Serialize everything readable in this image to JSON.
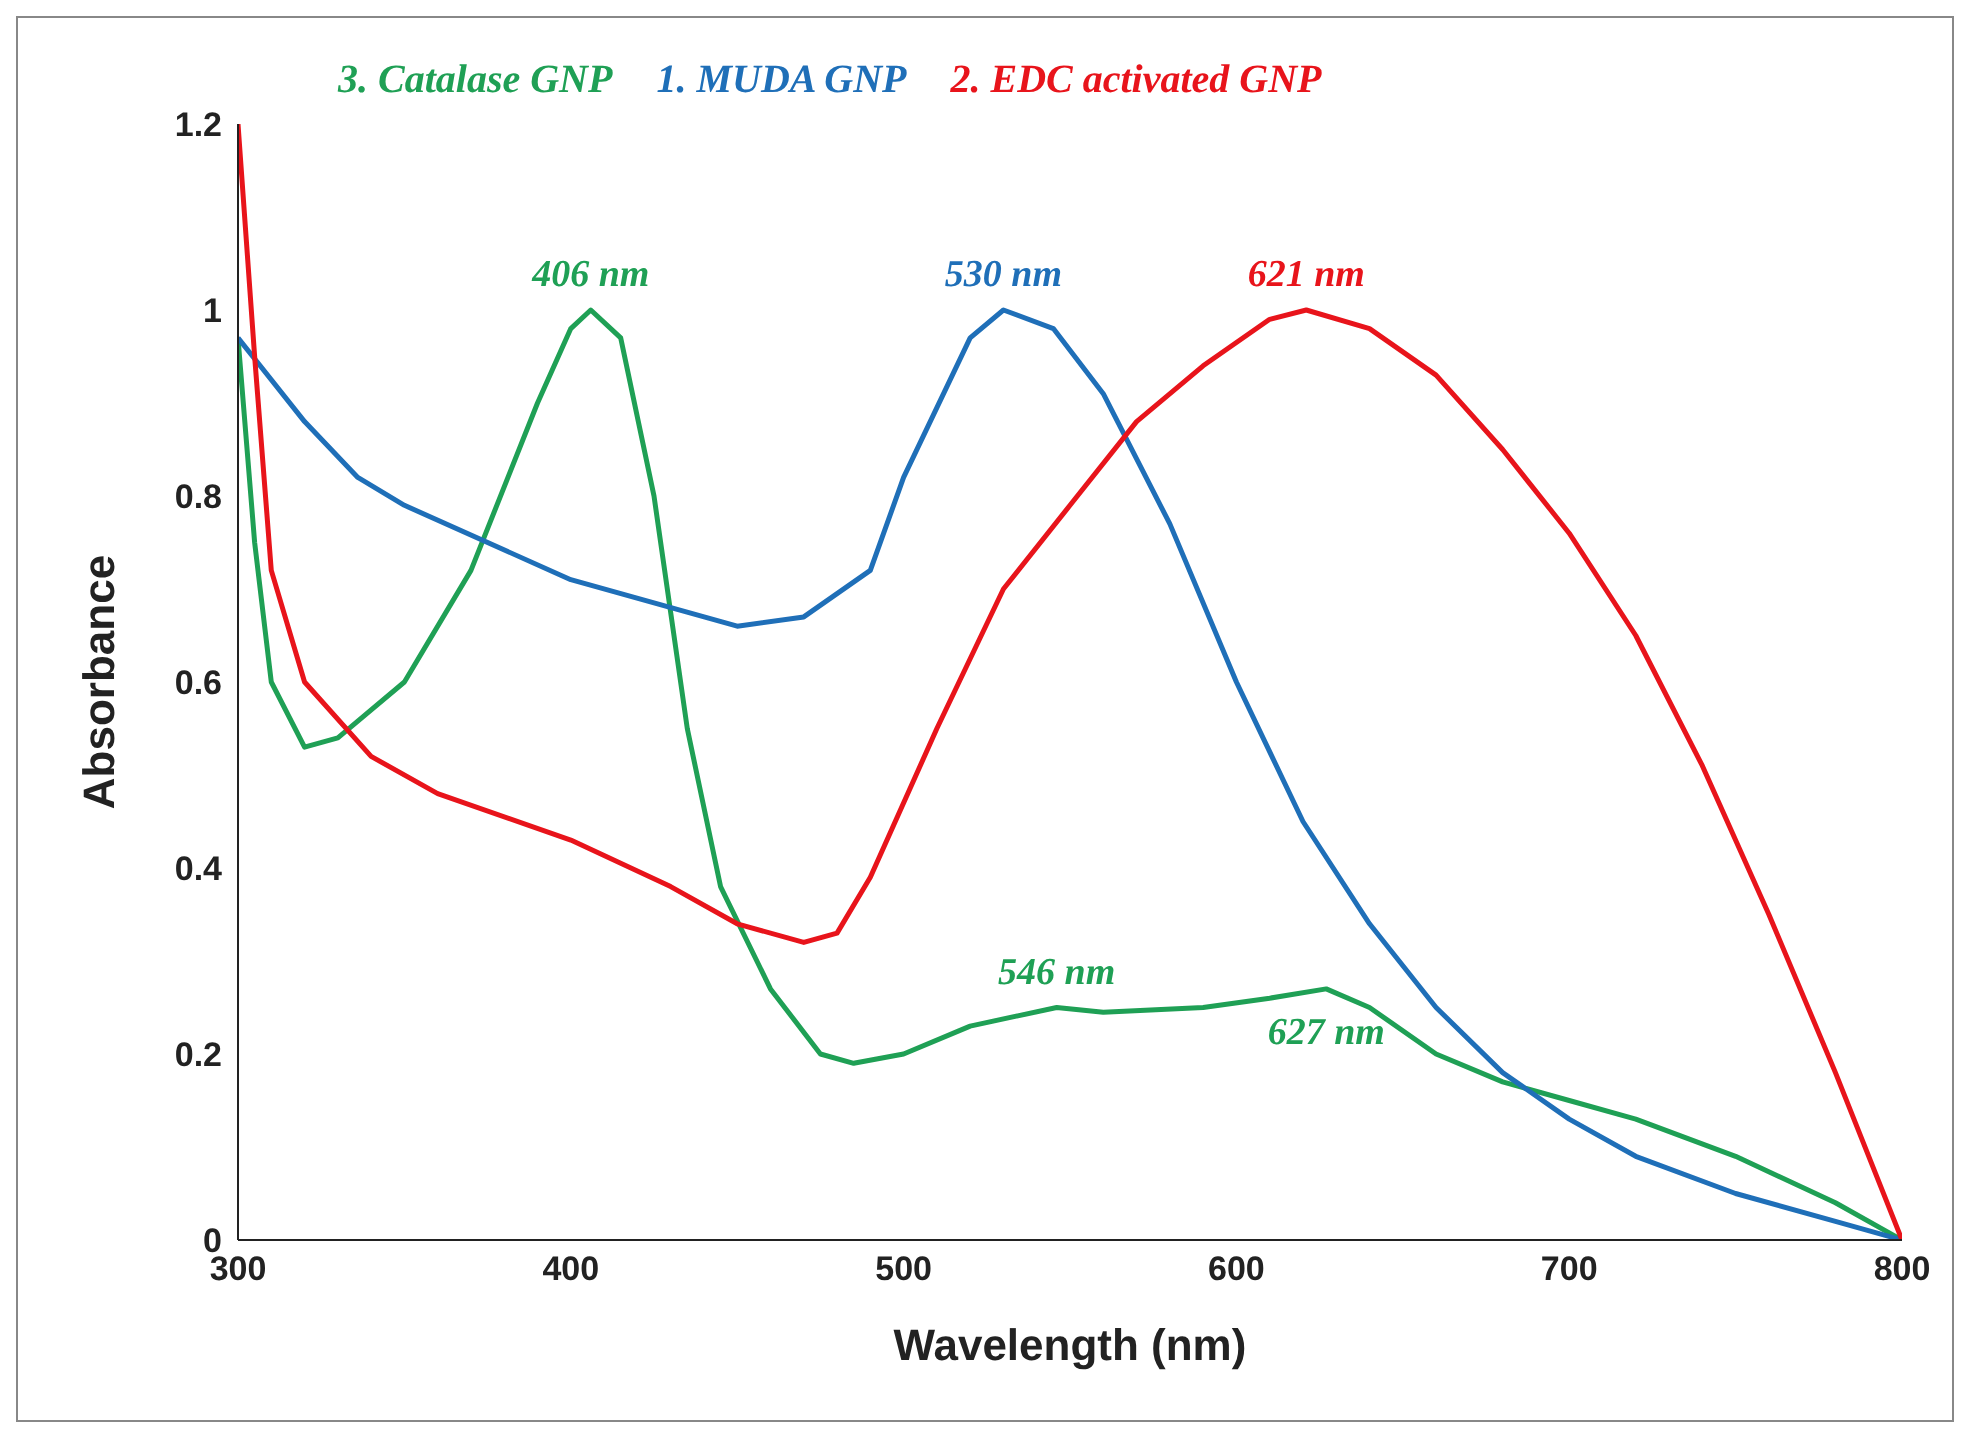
{
  "chart_data": {
    "type": "line",
    "xlabel": "Wavelength (nm)",
    "ylabel": "Absorbance",
    "xlim": [
      300,
      800
    ],
    "xticks": [
      300,
      400,
      500,
      600,
      700,
      800
    ],
    "ylim": [
      0,
      1.2
    ],
    "yticks": [
      0,
      0.2,
      0.4,
      0.6,
      0.8,
      1,
      1.2
    ],
    "grid": false,
    "legend": "top",
    "marker": "none",
    "line_style": "solid",
    "series": [
      {
        "name": "3. Catalase GNP",
        "color": "#1fa055",
        "x": [
          300,
          305,
          310,
          320,
          330,
          350,
          370,
          390,
          400,
          406,
          415,
          425,
          435,
          445,
          460,
          475,
          485,
          500,
          520,
          546,
          560,
          590,
          610,
          627,
          640,
          660,
          680,
          700,
          720,
          750,
          780,
          800
        ],
        "values": [
          0.97,
          0.75,
          0.6,
          0.53,
          0.54,
          0.6,
          0.72,
          0.9,
          0.98,
          1.0,
          0.97,
          0.8,
          0.55,
          0.38,
          0.27,
          0.2,
          0.19,
          0.2,
          0.23,
          0.25,
          0.245,
          0.25,
          0.26,
          0.27,
          0.25,
          0.2,
          0.17,
          0.15,
          0.13,
          0.09,
          0.04,
          0
        ]
      },
      {
        "name": "1. MUDA GNP",
        "color": "#1f6fb8",
        "x": [
          300,
          320,
          336,
          350,
          400,
          450,
          470,
          490,
          500,
          520,
          530,
          545,
          560,
          580,
          600,
          620,
          640,
          660,
          680,
          700,
          720,
          750,
          780,
          800
        ],
        "values": [
          0.97,
          0.88,
          0.82,
          0.79,
          0.71,
          0.66,
          0.67,
          0.72,
          0.82,
          0.97,
          1.0,
          0.98,
          0.91,
          0.77,
          0.6,
          0.45,
          0.34,
          0.25,
          0.18,
          0.13,
          0.09,
          0.05,
          0.02,
          0
        ]
      },
      {
        "name": "2. EDC activated GNP",
        "color": "#e8141b",
        "x": [
          300,
          305,
          310,
          320,
          340,
          360,
          400,
          430,
          450,
          470,
          480,
          490,
          510,
          530,
          550,
          570,
          590,
          610,
          621,
          640,
          660,
          680,
          700,
          720,
          740,
          760,
          780,
          800
        ],
        "values": [
          1.2,
          0.95,
          0.72,
          0.6,
          0.52,
          0.48,
          0.43,
          0.38,
          0.34,
          0.32,
          0.33,
          0.39,
          0.55,
          0.7,
          0.79,
          0.88,
          0.94,
          0.99,
          1.0,
          0.98,
          0.93,
          0.85,
          0.76,
          0.65,
          0.51,
          0.35,
          0.18,
          0
        ]
      }
    ],
    "annotations": [
      {
        "text": "406 nm",
        "x": 406,
        "y": 1.0
      },
      {
        "text": "530 nm",
        "x": 530,
        "y": 1.0
      },
      {
        "text": "621 nm",
        "x": 621,
        "y": 1.0
      },
      {
        "text": "546 nm",
        "x": 546,
        "y": 0.25
      },
      {
        "text": "627 nm",
        "x": 627,
        "y": 0.27
      }
    ]
  }
}
